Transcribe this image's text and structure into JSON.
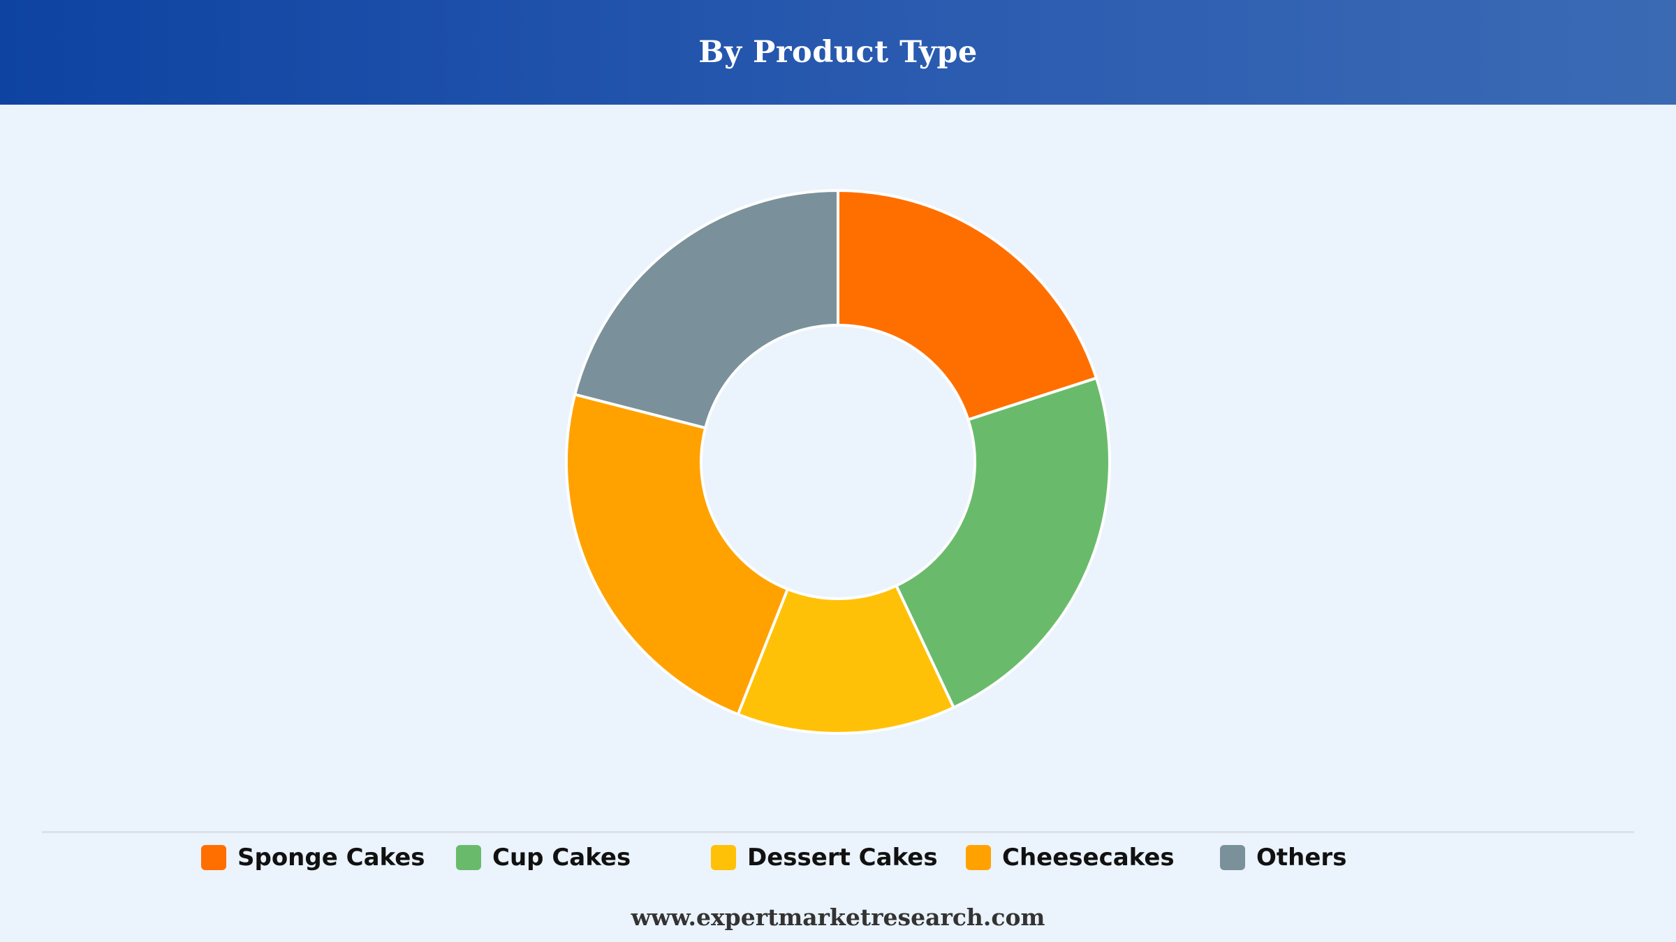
{
  "header": {
    "title": "By Product Type"
  },
  "chart_data": {
    "type": "pie",
    "title": "By Product Type",
    "donut": true,
    "categories": [
      "Sponge Cakes",
      "Cup Cakes",
      "Dessert Cakes",
      "Cheesecakes",
      "Others"
    ],
    "values": [
      20,
      23,
      13,
      23,
      21
    ],
    "unit": "%",
    "colors": [
      "#ff6f00",
      "#69bb6b",
      "#ffc107",
      "#ffa200",
      "#7a919b"
    ],
    "legend_position": "bottom",
    "grid": false
  },
  "legend": {
    "items": [
      {
        "label": "Sponge Cakes",
        "color": "#ff6f00"
      },
      {
        "label": "Cup Cakes",
        "color": "#69bb6b"
      },
      {
        "label": "Dessert Cakes",
        "color": "#ffc107"
      },
      {
        "label": "Cheesecakes",
        "color": "#ffa200"
      },
      {
        "label": "Others",
        "color": "#7a919b"
      }
    ]
  },
  "footer": {
    "website": "www.expertmarketresearch.com"
  }
}
